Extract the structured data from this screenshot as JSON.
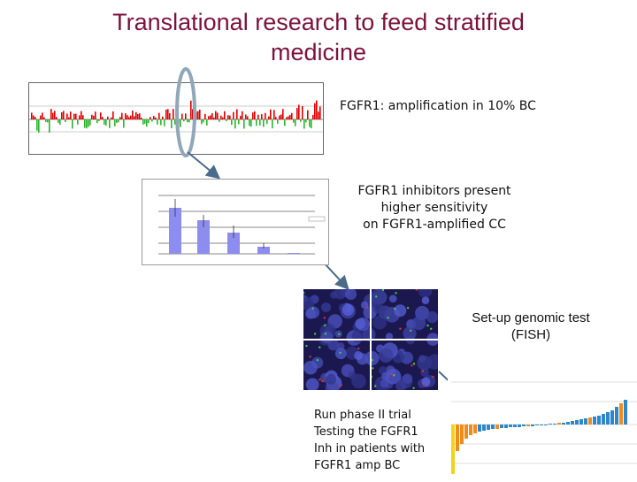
{
  "slide": {
    "title_line1": "Translational research to feed stratified",
    "title_line2": "medicine",
    "caption_amplification": "FGFR1: amplification in 10% BC",
    "caption_inhibitors": [
      "FGFR1 inhibitors present",
      "higher sensitivity",
      "on FGFR1-amplified CC"
    ],
    "caption_test": [
      "Set-up genomic test",
      "(FISH)"
    ],
    "caption_trial": [
      "Run phase II trial",
      "Testing the FGFR1",
      "Inh in patients with",
      "FGFR1 amp BC"
    ]
  },
  "colors": {
    "title": "#7b1238",
    "gain": "#e00000",
    "loss": "#2bb52b",
    "bar": "#8d8df0",
    "waterfall_blue": "#2f86c8",
    "waterfall_orange": "#f08c1e",
    "waterfall_yellow": "#f2d21b"
  }
}
